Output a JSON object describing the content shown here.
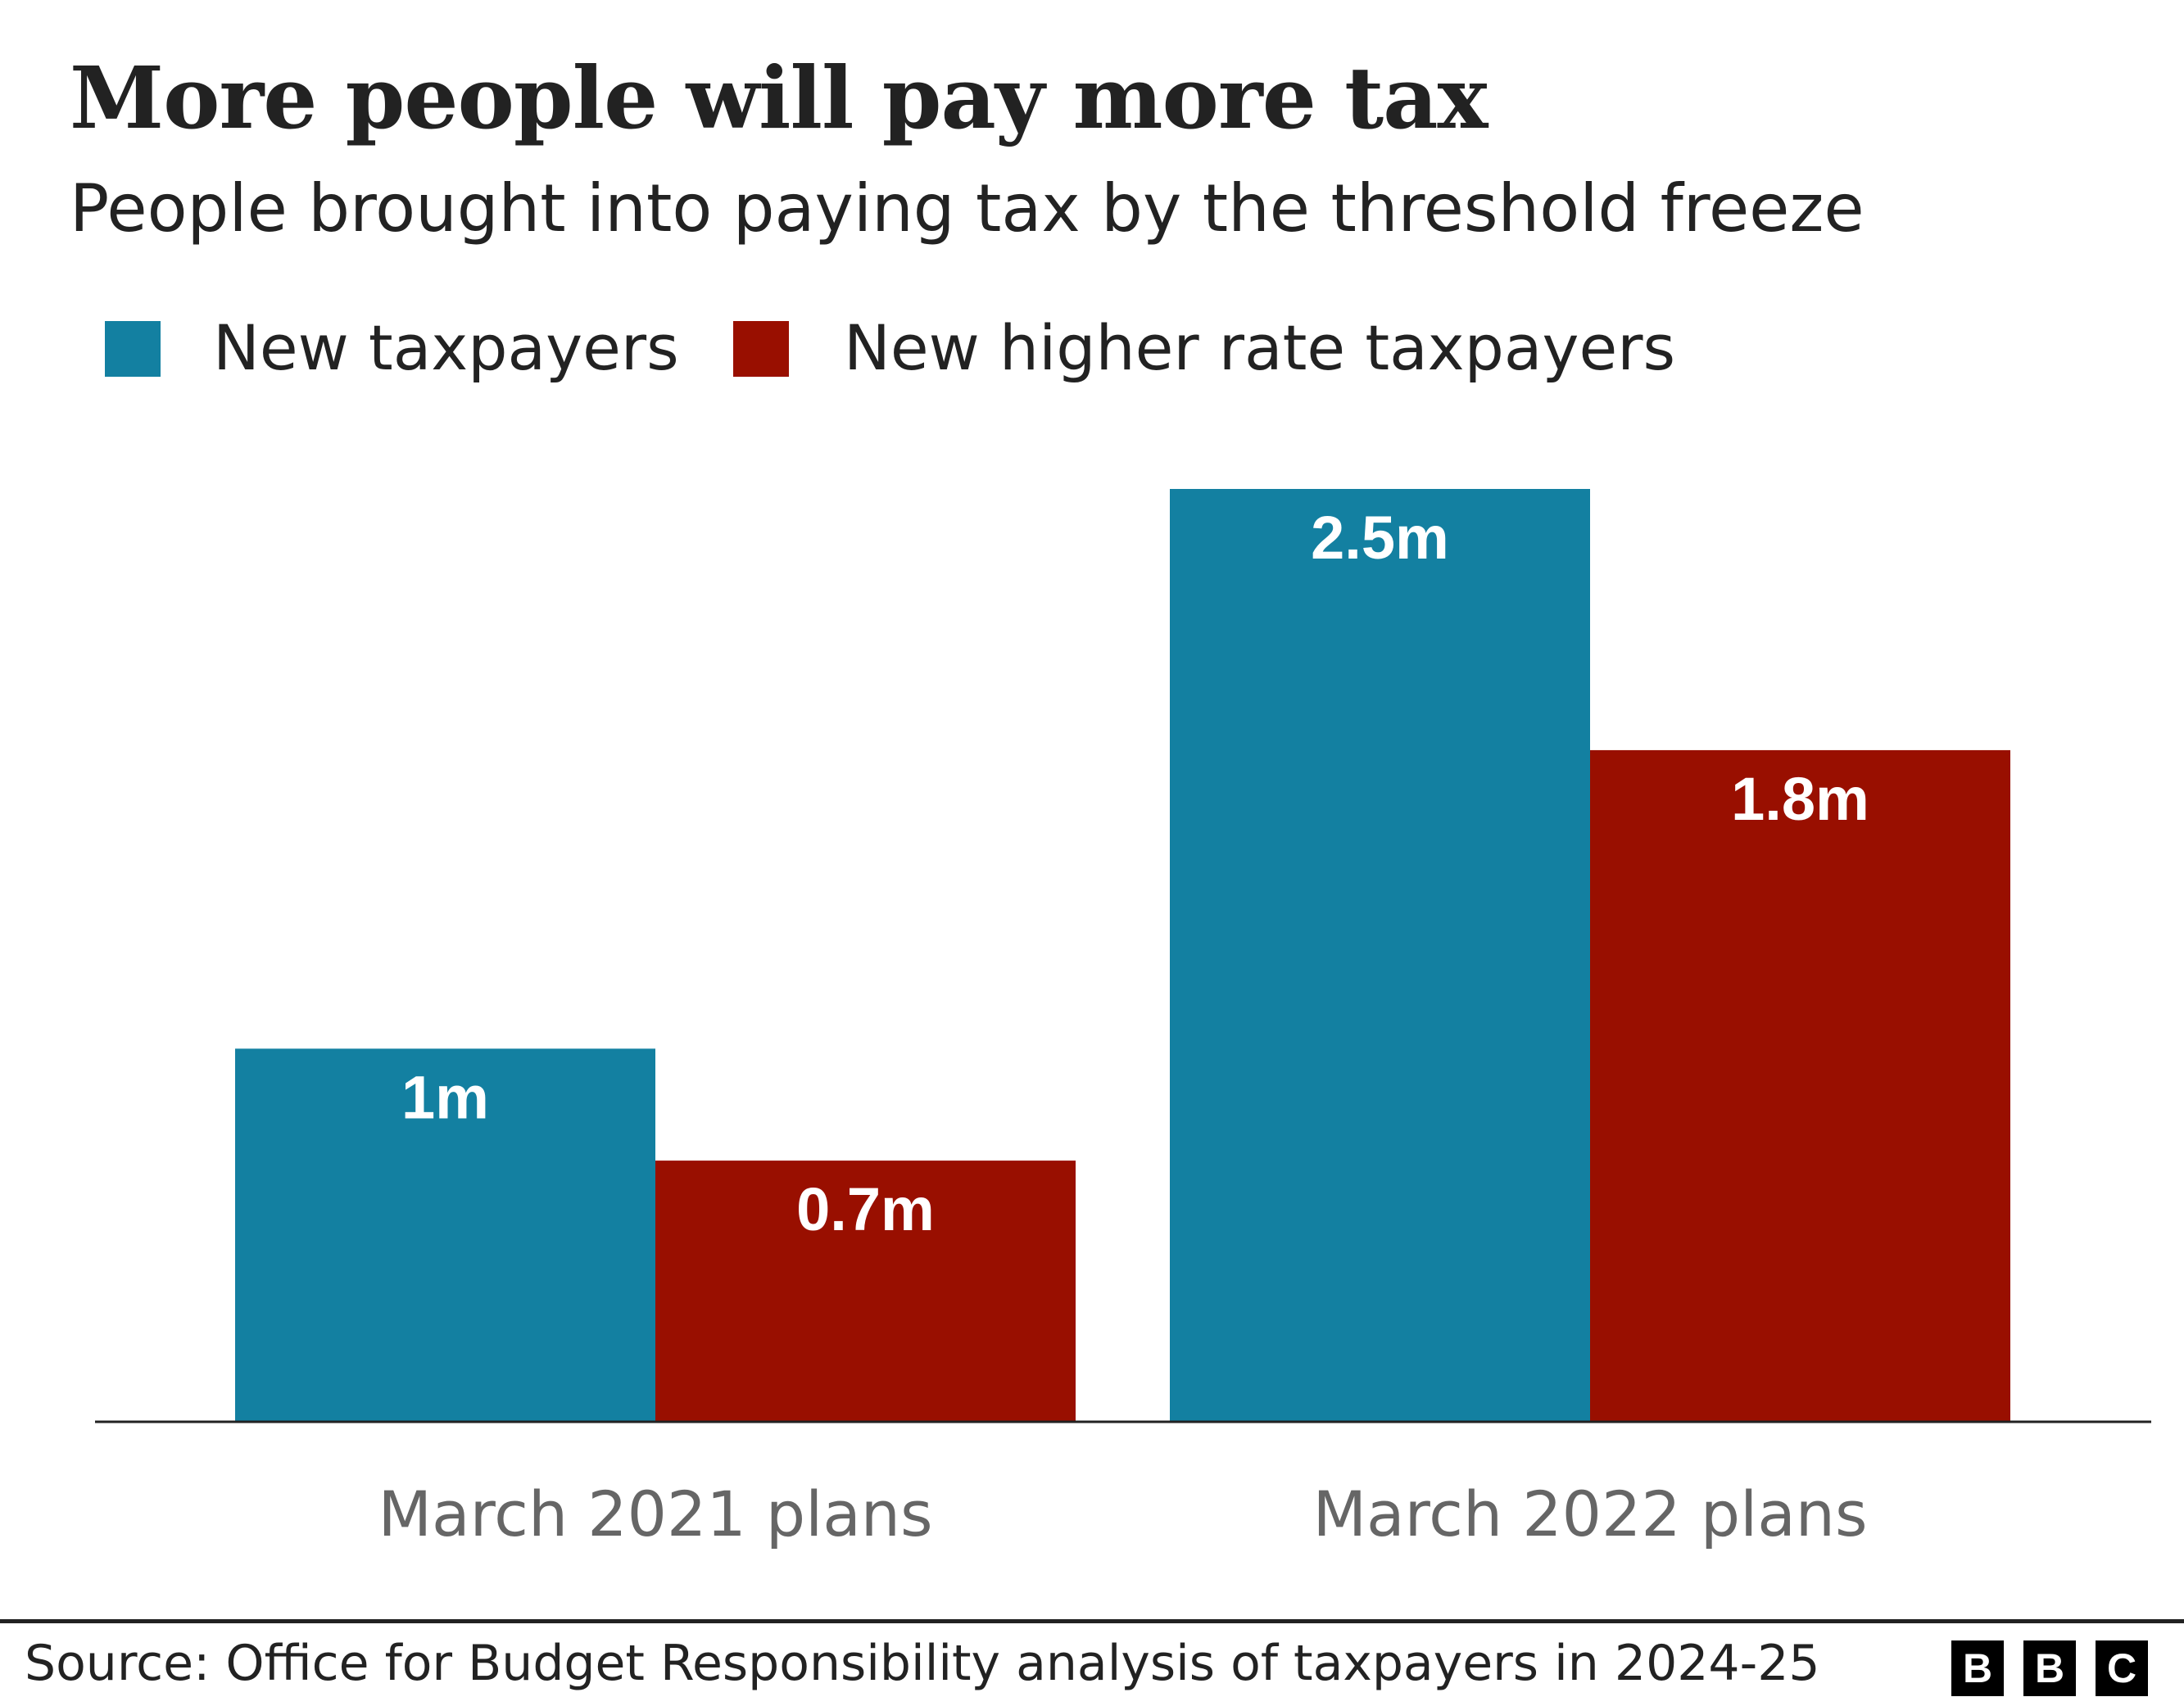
{
  "chart_data": {
    "type": "bar",
    "title": "More people will pay more tax",
    "subtitle": "People brought into paying tax by the threshold freeze",
    "categories": [
      "March 2021 plans",
      "March 2022 plans"
    ],
    "series": [
      {
        "name": "New taxpayers",
        "values": [
          1.0,
          2.5
        ],
        "labels": [
          "1m",
          "2.5m"
        ],
        "color": "#1380A1"
      },
      {
        "name": "New higher rate taxpayers",
        "values": [
          0.7,
          1.8
        ],
        "labels": [
          "0.7m",
          "1.8m"
        ],
        "color": "#990F00"
      }
    ],
    "unit": "millions",
    "ylim": [
      0,
      2.5
    ],
    "grid": false,
    "legend": "top-left",
    "xlabel": "",
    "ylabel": ""
  },
  "footer": {
    "source": "Source: Office for Budget Responsibility analysis of taxpayers in 2024-25",
    "logo": [
      "B",
      "B",
      "C"
    ]
  }
}
